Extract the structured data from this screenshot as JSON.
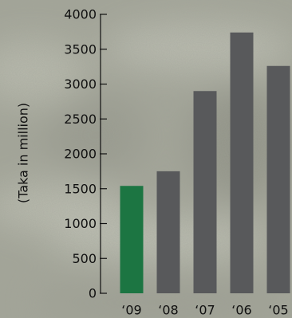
{
  "chart_data": {
    "type": "bar",
    "title": "",
    "xlabel": "",
    "ylabel": "(Taka in million)",
    "categories": [
      "‘09",
      "‘08",
      "‘07",
      "‘06",
      "‘05"
    ],
    "values": [
      1540,
      1750,
      2900,
      3740,
      3260
    ],
    "ylim": [
      0,
      4000
    ],
    "yticks": [
      "0",
      "500",
      "1000",
      "1500",
      "2000",
      "2500",
      "3000",
      "3500",
      "4000"
    ],
    "grid": false,
    "legend": "none",
    "colors": {
      "highlight": "#1c7542",
      "bar": "#58595b",
      "axis": "#111111",
      "background": "#a3a598"
    }
  }
}
